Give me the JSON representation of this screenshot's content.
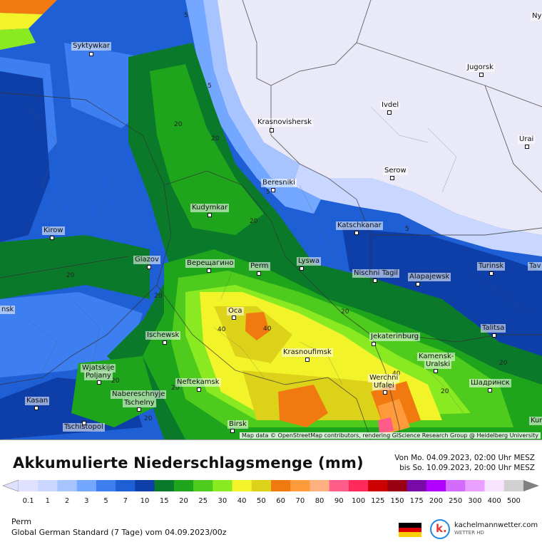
{
  "map": {
    "colors": {
      "c0_1": "#e0e0ff",
      "c1": "#c9d6ff",
      "c2": "#a8c4ff",
      "c3": "#74a7ff",
      "c5": "#3d7ef0",
      "c7": "#1f5fd6",
      "c10": "#0e3fa8",
      "c15": "#0a7a2a",
      "c20": "#1fa51c",
      "c25": "#4ecb1c",
      "c30": "#8aea22",
      "c40": "#f3f32a",
      "c50": "#ddd21a",
      "c60": "#f07a10",
      "c70": "#ff9b3a",
      "c80": "#ffb080",
      "c90": "#ff5c8a"
    },
    "cities": [
      {
        "name": "Syktywkar"
      },
      {
        "name": "Jugorsk"
      },
      {
        "name": "Ivdel"
      },
      {
        "name": "Krasnovishersk"
      },
      {
        "name": "Urai"
      },
      {
        "name": "Serow"
      },
      {
        "name": "Beresniki"
      },
      {
        "name": "Kudymkar"
      },
      {
        "name": "Katschkanar"
      },
      {
        "name": "Kirow"
      },
      {
        "name": "Glazov"
      },
      {
        "name": "Верещагино"
      },
      {
        "name": "Perm"
      },
      {
        "name": "Lyswa"
      },
      {
        "name": "Nischni Tagil"
      },
      {
        "name": "Alapajewsk"
      },
      {
        "name": "Turinsk"
      },
      {
        "name": "Tav"
      },
      {
        "name": "Oca"
      },
      {
        "name": "Ischewsk"
      },
      {
        "name": "Krasnoufimsk"
      },
      {
        "name": "Jekaterinburg"
      },
      {
        "name": "Talitsa"
      },
      {
        "name": "Kamensk-"
      },
      {
        "name": "Uralski"
      },
      {
        "name": "Wjatskije"
      },
      {
        "name": "Poljany"
      },
      {
        "name": "Neftekamsk"
      },
      {
        "name": "Werchni"
      },
      {
        "name": "Ufalei"
      },
      {
        "name": "Шадринск"
      },
      {
        "name": "Nabereschnyje"
      },
      {
        "name": "Tschelny"
      },
      {
        "name": "Kasan"
      },
      {
        "name": "Tschistopol"
      },
      {
        "name": "Birsk"
      },
      {
        "name": "nsk"
      },
      {
        "name": "Ny"
      },
      {
        "name": "Kur"
      }
    ],
    "contour_numbers": [
      "5",
      "5",
      "5",
      "5",
      "20",
      "20",
      "20",
      "20",
      "20",
      "20",
      "20",
      "20",
      "40",
      "40",
      "40",
      "20",
      "20",
      "20"
    ],
    "attribution": "Map data © OpenStreetMap contributors, rendering GIScience Research Group @ Heidelberg University"
  },
  "legend": {
    "title": "Akkumulierte Niederschlagsmenge (mm)",
    "period_from": "Von Mo. 04.09.2023, 02:00 Uhr MESZ",
    "period_to": "bis So. 10.09.2023, 20:00 Uhr MESZ",
    "scale": [
      {
        "label": "0.1",
        "color": "#e0e0ff"
      },
      {
        "label": "1",
        "color": "#c9d6ff"
      },
      {
        "label": "2",
        "color": "#a8c4ff"
      },
      {
        "label": "3",
        "color": "#74a7ff"
      },
      {
        "label": "5",
        "color": "#3d7ef0"
      },
      {
        "label": "7",
        "color": "#1f5fd6"
      },
      {
        "label": "10",
        "color": "#0e3fa8"
      },
      {
        "label": "15",
        "color": "#0a7a2a"
      },
      {
        "label": "20",
        "color": "#1fa51c"
      },
      {
        "label": "25",
        "color": "#4ecb1c"
      },
      {
        "label": "30",
        "color": "#8aea22"
      },
      {
        "label": "40",
        "color": "#f3f32a"
      },
      {
        "label": "50",
        "color": "#ddd21a"
      },
      {
        "label": "60",
        "color": "#f07a10"
      },
      {
        "label": "70",
        "color": "#ff9b3a"
      },
      {
        "label": "80",
        "color": "#ffb080"
      },
      {
        "label": "90",
        "color": "#ff5c8a"
      },
      {
        "label": "100",
        "color": "#ff2a5a"
      },
      {
        "label": "125",
        "color": "#cc0000"
      },
      {
        "label": "150",
        "color": "#990012"
      },
      {
        "label": "175",
        "color": "#7a0aa8"
      },
      {
        "label": "200",
        "color": "#b000ff"
      },
      {
        "label": "250",
        "color": "#d46bff"
      },
      {
        "label": "300",
        "color": "#e9a0ff"
      },
      {
        "label": "400",
        "color": "#f6e4ff"
      },
      {
        "label": "500",
        "color": "#d0d0d0"
      }
    ],
    "location": "Perm",
    "model": "Global German Standard (7 Tage) vom 04.09.2023/00z",
    "brand": {
      "logo_letter": "k.",
      "name": "kachelmannwetter.com",
      "sub": "WETTER HD"
    },
    "flag_colors": [
      "#000000",
      "#dd0000",
      "#ffce00"
    ]
  }
}
